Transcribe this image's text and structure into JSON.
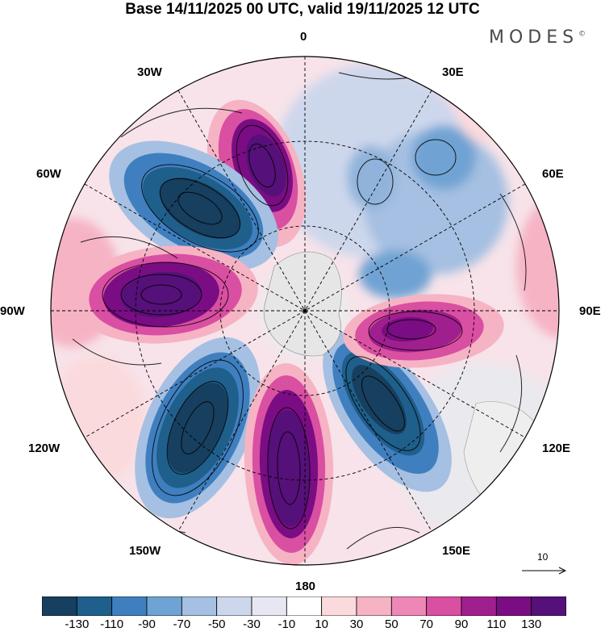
{
  "title": "Base 14/11/2025 00 UTC, valid 19/11/2025 12 UTC",
  "brand": "MODES",
  "brand_mark": "©",
  "longitude_labels": {
    "lon_0": "0",
    "lon_30e": "30E",
    "lon_60e": "60E",
    "lon_90e": "90E",
    "lon_120e": "120E",
    "lon_150e": "150E",
    "lon_180": "180",
    "lon_150w": "150W",
    "lon_120w": "120W",
    "lon_90w": "90W",
    "lon_60w": "60W",
    "lon_30w": "30W"
  },
  "reference_vector": {
    "label": "10"
  },
  "colorbar": {
    "colors": [
      "#173f5f",
      "#1f5f8b",
      "#3f7fbf",
      "#6fa3d3",
      "#a5c0e2",
      "#cdd7ec",
      "#e7e7f3",
      "#ffffff",
      "#fbdadd",
      "#f6b3c4",
      "#ee86b6",
      "#d94fa2",
      "#a01f8e",
      "#7a0d83",
      "#561079"
    ],
    "labels": [
      "-130",
      "-110",
      "-90",
      "-70",
      "-50",
      "-30",
      "-10",
      "10",
      "30",
      "50",
      "70",
      "90",
      "110",
      "130"
    ]
  },
  "anomaly_centres": [
    {
      "sign": "positive",
      "level": 130,
      "sector": "0-30W"
    },
    {
      "sign": "negative",
      "level": -130,
      "sector": "30W-60W"
    },
    {
      "sign": "positive",
      "level": 130,
      "sector": "60W-90W"
    },
    {
      "sign": "negative",
      "level": -130,
      "sector": "120W-150W"
    },
    {
      "sign": "positive",
      "level": 130,
      "sector": "180"
    },
    {
      "sign": "negative",
      "level": -130,
      "sector": "140E-160E"
    },
    {
      "sign": "positive",
      "level": 110,
      "sector": "90E-100E"
    },
    {
      "sign": "negative",
      "level": -70,
      "sector": "30E-60E"
    }
  ]
}
